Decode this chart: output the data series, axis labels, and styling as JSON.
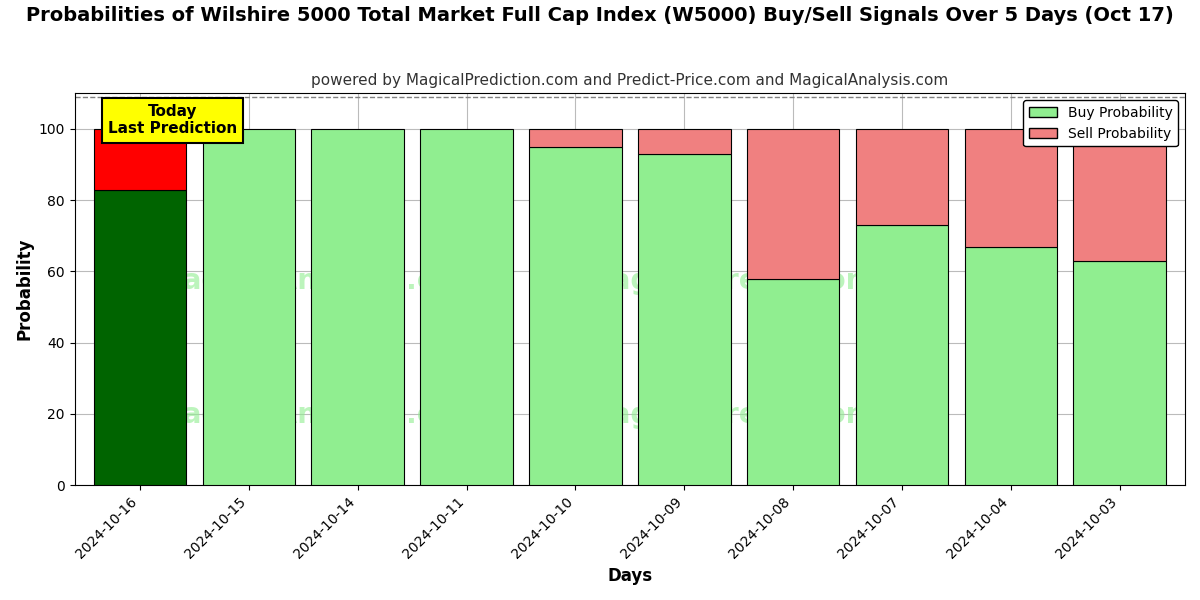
{
  "title": "Probabilities of Wilshire 5000 Total Market Full Cap Index (W5000) Buy/Sell Signals Over 5 Days (Oct 17)",
  "subtitle": "powered by MagicalPrediction.com and Predict-Price.com and MagicalAnalysis.com",
  "xlabel": "Days",
  "ylabel": "Probability",
  "categories": [
    "2024-10-16",
    "2024-10-15",
    "2024-10-14",
    "2024-10-11",
    "2024-10-10",
    "2024-10-09",
    "2024-10-08",
    "2024-10-07",
    "2024-10-04",
    "2024-10-03"
  ],
  "buy_values": [
    83,
    100,
    100,
    100,
    95,
    93,
    58,
    73,
    67,
    63
  ],
  "sell_values": [
    17,
    0,
    0,
    0,
    5,
    7,
    42,
    27,
    33,
    37
  ],
  "first_bar_buy_color": "#006400",
  "first_bar_sell_color": "#ff0000",
  "other_bar_buy_color": "#90EE90",
  "other_bar_sell_color": "#f08080",
  "bar_edge_color": "#000000",
  "ylim": [
    0,
    110
  ],
  "yticks": [
    0,
    20,
    40,
    60,
    80,
    100
  ],
  "dashed_line_y": 109,
  "legend_buy_color": "#90EE90",
  "legend_sell_color": "#f08080",
  "today_box_color": "#ffff00",
  "today_box_text": "Today\nLast Prediction",
  "background_color": "#ffffff",
  "grid_color": "#bbbbbb",
  "title_fontsize": 14,
  "subtitle_fontsize": 11,
  "axis_label_fontsize": 12,
  "tick_fontsize": 10
}
